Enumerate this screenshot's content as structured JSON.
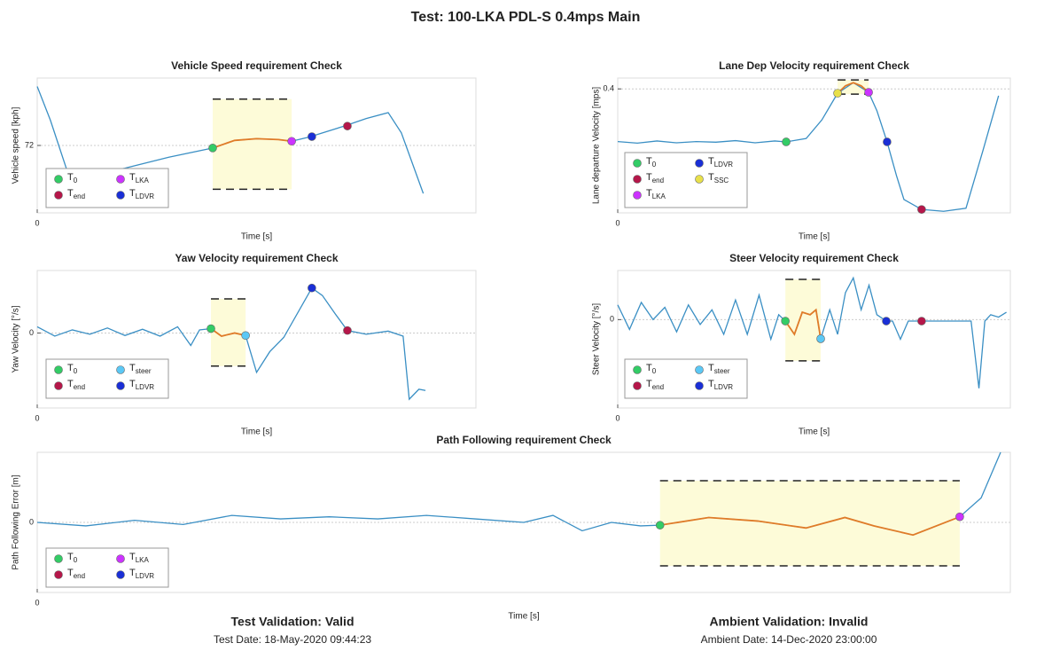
{
  "title": "Test: 100-LKA PDL-S 0.4mps Main",
  "chart_data": [
    {
      "type": "line",
      "title": "Vehicle Speed requirement Check",
      "xlabel": "Time [s]",
      "ylabel": "Vehicle speed [kph]",
      "xlim": [
        0,
        10
      ],
      "xticks": [
        0
      ],
      "ylim": [
        64,
        80
      ],
      "yticks": [
        72
      ],
      "grid": true,
      "series": [
        {
          "color": "#3a8fc4",
          "x": [
            0,
            0.3,
            0.7,
            1,
            2,
            3,
            4,
            4.5,
            5,
            5.5,
            5.8,
            6.2,
            7,
            7.5,
            8,
            8.3,
            8.8
          ],
          "values": [
            79,
            75,
            68.7,
            68.3,
            69.3,
            70.6,
            71.7,
            72.6,
            72.8,
            72.7,
            72.5,
            73,
            74.3,
            75.2,
            75.9,
            73.5,
            66.3
          ]
        },
        {
          "color": "#e07b28",
          "x": [
            4,
            4.5,
            5,
            5.5,
            5.8
          ],
          "values": [
            71.7,
            72.6,
            72.8,
            72.7,
            72.5
          ]
        }
      ],
      "band": {
        "x": [
          4,
          5.8
        ],
        "y": [
          66.8,
          77.5
        ]
      },
      "markers": [
        {
          "name": "T0",
          "color": "#33cc66",
          "x": 4,
          "value": 71.7
        },
        {
          "name": "Tend",
          "color": "#b5174a",
          "x": 7.07,
          "value": 74.3
        },
        {
          "name": "TLKA",
          "color": "#cc33ff",
          "x": 5.8,
          "value": 72.5
        },
        {
          "name": "TLDVR",
          "color": "#1a2fd6",
          "x": 6.26,
          "value": 73.05
        }
      ]
    },
    {
      "type": "line",
      "title": "Lane Dep Velocity requirement Check",
      "xlabel": "Time [s]",
      "ylabel": "Lane departure Velocity [mps]",
      "xlim": [
        0,
        10
      ],
      "xticks": [
        0
      ],
      "ylim": [
        0,
        0.435
      ],
      "yticks": [
        0.4
      ],
      "grid": true,
      "series": [
        {
          "color": "#3a8fc4",
          "x": [
            0,
            0.5,
            1,
            1.5,
            2,
            2.5,
            3,
            3.5,
            4,
            4.29,
            4.8,
            5.2,
            5.6,
            6.0,
            6.39,
            6.6,
            6.86,
            7.1,
            7.29,
            7.74,
            8.3,
            8.87,
            9.3,
            9.7
          ],
          "values": [
            0.23,
            0.225,
            0.232,
            0.226,
            0.23,
            0.228,
            0.233,
            0.226,
            0.232,
            0.229,
            0.24,
            0.3,
            0.386,
            0.42,
            0.389,
            0.33,
            0.229,
            0.12,
            0.043,
            0.011,
            0.005,
            0.015,
            0.2,
            0.378
          ]
        },
        {
          "color": "#e07b28",
          "x": [
            5.6,
            5.8,
            6.0,
            6.2,
            6.39
          ],
          "values": [
            0.386,
            0.41,
            0.42,
            0.41,
            0.389
          ]
        }
      ],
      "band": {
        "x": [
          5.6,
          6.39
        ],
        "y": [
          0.383,
          0.429
        ]
      },
      "markers": [
        {
          "name": "T0",
          "color": "#33cc66",
          "x": 4.29,
          "value": 0.229
        },
        {
          "name": "Tend",
          "color": "#b5174a",
          "x": 7.74,
          "value": 0.011
        },
        {
          "name": "TLKA",
          "color": "#cc33ff",
          "x": 6.39,
          "value": 0.389
        },
        {
          "name": "TLDVR",
          "color": "#1a2fd6",
          "x": 6.86,
          "value": 0.229
        },
        {
          "name": "TSSC",
          "color": "#e8e04a",
          "x": 5.6,
          "value": 0.386
        }
      ]
    },
    {
      "type": "line",
      "title": "Yaw Velocity requirement Check",
      "xlabel": "Time [s]",
      "ylabel": "Yaw Velocity [°/s]",
      "xlim": [
        0,
        10
      ],
      "xticks": [
        0
      ],
      "ylim": [
        -1.2,
        1
      ],
      "yticks": [
        0
      ],
      "grid": true,
      "series": [
        {
          "color": "#3a8fc4",
          "x": [
            0,
            0.4,
            0.8,
            1.2,
            1.6,
            2.0,
            2.4,
            2.8,
            3.2,
            3.5,
            3.7,
            3.96,
            4.2,
            4.5,
            4.75,
            5.0,
            5.3,
            5.62,
            6.26,
            6.5,
            6.8,
            7.07,
            7.5,
            8.0,
            8.34,
            8.48,
            8.7,
            8.85
          ],
          "values": [
            0.1,
            -0.05,
            0.05,
            -0.02,
            0.08,
            -0.04,
            0.06,
            -0.05,
            0.1,
            -0.2,
            0.05,
            0.07,
            -0.05,
            0,
            -0.04,
            -0.63,
            -0.3,
            -0.07,
            0.72,
            0.6,
            0.3,
            0.04,
            -0.02,
            0.03,
            -0.05,
            -1.06,
            -0.9,
            -0.92
          ]
        },
        {
          "color": "#e07b28",
          "x": [
            3.96,
            4.2,
            4.5,
            4.75
          ],
          "values": [
            0.07,
            -0.05,
            0,
            -0.04
          ]
        }
      ],
      "band": {
        "x": [
          3.96,
          4.75
        ],
        "y": [
          -0.53,
          0.546
        ]
      },
      "markers": [
        {
          "name": "T0",
          "color": "#33cc66",
          "x": 3.96,
          "value": 0.07
        },
        {
          "name": "Tend",
          "color": "#b5174a",
          "x": 7.07,
          "value": 0.04
        },
        {
          "name": "Tsteer",
          "color": "#5bc8f5",
          "x": 4.75,
          "value": -0.04
        },
        {
          "name": "TLDVR",
          "color": "#1a2fd6",
          "x": 6.26,
          "value": 0.72
        }
      ]
    },
    {
      "type": "line",
      "title": "Steer Velocity requirement Check",
      "xlabel": "Time [s]",
      "ylabel": "Steer Velocity [°/s]",
      "xlim": [
        0,
        10
      ],
      "xticks": [
        0
      ],
      "ylim": [
        -1.8,
        1
      ],
      "yticks": [
        0
      ],
      "grid": true,
      "series": [
        {
          "color": "#3a8fc4",
          "x": [
            0,
            0.3,
            0.6,
            0.9,
            1.2,
            1.5,
            1.8,
            2.1,
            2.4,
            2.7,
            3.0,
            3.3,
            3.6,
            3.9,
            4.1,
            4.27,
            4.5,
            4.7,
            4.9,
            5.05,
            5.17,
            5.4,
            5.6,
            5.8,
            6.0,
            6.2,
            6.4,
            6.6,
            6.84,
            7.0,
            7.2,
            7.4,
            7.74,
            8.0,
            8.5,
            9.0,
            9.2,
            9.35,
            9.5,
            9.7,
            9.9
          ],
          "values": [
            0.3,
            -0.2,
            0.35,
            0.0,
            0.25,
            -0.25,
            0.3,
            -0.1,
            0.2,
            -0.3,
            0.4,
            -0.3,
            0.5,
            -0.4,
            0.1,
            -0.03,
            -0.3,
            0.15,
            0.1,
            0.2,
            -0.39,
            0.2,
            -0.3,
            0.55,
            0.85,
            0.2,
            0.7,
            0.1,
            -0.03,
            -0.03,
            -0.4,
            -0.03,
            -0.03,
            -0.03,
            -0.03,
            -0.03,
            -1.4,
            -0.03,
            0.1,
            0.05,
            0.15
          ]
        },
        {
          "color": "#e07b28",
          "x": [
            4.27,
            4.5,
            4.7,
            4.9,
            5.05,
            5.17
          ],
          "values": [
            -0.03,
            -0.3,
            0.15,
            0.1,
            0.2,
            -0.39
          ]
        }
      ],
      "band": {
        "x": [
          4.27,
          5.17
        ],
        "y": [
          -0.84,
          0.82
        ]
      },
      "markers": [
        {
          "name": "T0",
          "color": "#33cc66",
          "x": 4.27,
          "value": -0.03
        },
        {
          "name": "Tend",
          "color": "#b5174a",
          "x": 7.74,
          "value": -0.03
        },
        {
          "name": "Tsteer",
          "color": "#5bc8f5",
          "x": 5.17,
          "value": -0.39
        },
        {
          "name": "TLDVR",
          "color": "#1a2fd6",
          "x": 6.84,
          "value": -0.03
        }
      ]
    },
    {
      "type": "line",
      "title": "Path Following requirement Check",
      "xlabel": "Time [s]",
      "ylabel": "Path Following Error [m]",
      "xlim": [
        0,
        10
      ],
      "xticks": [
        0
      ],
      "ylim": [
        -1,
        1
      ],
      "yticks": [
        0
      ],
      "grid": true,
      "series": [
        {
          "color": "#3a8fc4",
          "x": [
            0,
            0.5,
            1,
            1.5,
            2,
            2.5,
            3,
            3.5,
            4,
            4.5,
            5,
            5.3,
            5.6,
            5.9,
            6.2,
            6.4,
            6.9,
            7.4,
            7.9,
            8.3,
            8.6,
            9.0,
            9.48,
            9.7,
            9.9
          ],
          "values": [
            0,
            -0.05,
            0.03,
            -0.03,
            0.1,
            0.05,
            0.08,
            0.05,
            0.1,
            0.05,
            0.0,
            0.1,
            -0.12,
            0.0,
            -0.05,
            -0.04,
            0.07,
            0.02,
            -0.08,
            0.07,
            -0.05,
            -0.18,
            0.08,
            0.35,
            1.0
          ]
        },
        {
          "color": "#e07b28",
          "x": [
            6.4,
            6.9,
            7.4,
            7.9,
            8.3,
            8.6,
            9.0,
            9.48
          ],
          "values": [
            -0.04,
            0.07,
            0.02,
            -0.08,
            0.07,
            -0.05,
            -0.18,
            0.08
          ]
        }
      ],
      "band": {
        "x": [
          6.4,
          9.48
        ],
        "y": [
          -0.62,
          0.595
        ]
      },
      "markers": [
        {
          "name": "T0",
          "color": "#33cc66",
          "x": 6.4,
          "value": -0.04
        },
        {
          "name": "Tend",
          "color": "#b5174a",
          "x": null,
          "value": null
        },
        {
          "name": "TLKA",
          "color": "#cc33ff",
          "x": 9.48,
          "value": 0.08
        },
        {
          "name": "TLDVR",
          "color": "#1a2fd6",
          "x": null,
          "value": null
        }
      ]
    }
  ],
  "footer": [
    {
      "text": "Test Validation: Valid",
      "color": "#5aa02c",
      "date": "Test Date: 18-May-2020 09:44:23"
    },
    {
      "text": "Ambient Validation: Invalid",
      "color": "#e0312b",
      "date": "Ambient Date: 14-Dec-2020 23:00:00"
    }
  ]
}
